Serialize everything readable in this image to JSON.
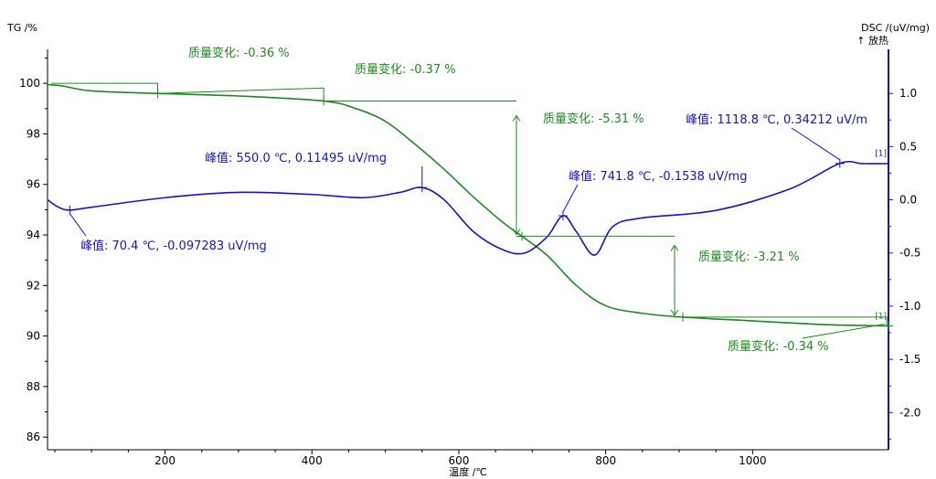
{
  "chart_data": {
    "type": "line",
    "y_left_label": "TG /%",
    "y_right_label": "DSC /(uV/mg)",
    "y_right_sublabel": "↑ 放热",
    "x_label": "温度 /℃",
    "x_range": [
      40,
      1185
    ],
    "y_left_range": [
      85.5,
      101.2
    ],
    "y_right_range": [
      -2.35,
      1.38
    ],
    "x_ticks": [
      "200",
      "400",
      "600",
      "800",
      "1000"
    ],
    "y_left_ticks": [
      "86",
      "88",
      "90",
      "92",
      "94",
      "96",
      "98",
      "100"
    ],
    "y_right_ticks": [
      "1.0",
      "0.5",
      "0.0",
      "-0.5",
      "-1.0",
      "-1.5",
      "-2.0"
    ],
    "colors": {
      "tg": "#1f8a1f",
      "dsc": "#1414c8",
      "axis_left": "#000000",
      "axis_right": "#1414c8"
    },
    "series": [
      {
        "key": "tg",
        "x": [
          40,
          60,
          100,
          190,
          300,
          416,
          460,
          500,
          540,
          580,
          620,
          660,
          686,
          720,
          760,
          800,
          850,
          905,
          1000,
          1100,
          1185
        ],
        "y": [
          99.95,
          99.9,
          99.7,
          99.6,
          99.5,
          99.3,
          99.0,
          98.5,
          97.6,
          96.6,
          95.5,
          94.5,
          93.95,
          93.2,
          92.0,
          91.2,
          90.9,
          90.75,
          90.6,
          90.45,
          90.4
        ]
      },
      {
        "key": "dsc",
        "x": [
          40,
          55,
          70.4,
          100,
          200,
          300,
          400,
          470,
          520,
          550,
          580,
          620,
          660,
          690,
          720,
          741.8,
          760,
          785,
          810,
          850,
          950,
          1050,
          1118.8,
          1150,
          1185
        ],
        "y": [
          0.0,
          -0.07,
          -0.097,
          -0.07,
          0.02,
          0.07,
          0.05,
          0.02,
          0.07,
          0.115,
          0.0,
          -0.3,
          -0.47,
          -0.5,
          -0.35,
          -0.15,
          -0.3,
          -0.52,
          -0.25,
          -0.17,
          -0.1,
          0.1,
          0.342,
          0.34,
          0.34
        ]
      }
    ],
    "annotations_green": [
      {
        "text": "质量变化: -0.36 %",
        "x": 190,
        "y": 99.6
      },
      {
        "text": "质量变化: -0.37 %",
        "x": 416,
        "y": 99.3
      },
      {
        "text": "质量变化: -5.31 %",
        "x": 686,
        "y": 93.95
      },
      {
        "text": "质量变化: -3.21 %",
        "x": 905,
        "y": 90.75
      },
      {
        "text": "质量变化: -0.34 %",
        "x": 1185,
        "y": 90.4
      }
    ],
    "annotations_blue": [
      {
        "text": "峰值: 550.0 ℃, 0.11495 uV/mg",
        "x": 550.0,
        "y": 0.115
      },
      {
        "text": "峰值: 70.4 ℃, -0.097283 uV/mg",
        "x": 70.4,
        "y": -0.097
      },
      {
        "text": "峰值: 741.8 ℃, -0.1538 uV/mg",
        "x": 741.8,
        "y": -0.15
      },
      {
        "text": "峰值: 1118.8 ℃, 0.34212 uV/m",
        "x": 1118.8,
        "y": 0.342
      }
    ],
    "curve_tags": [
      "[1]",
      "[1]"
    ]
  }
}
